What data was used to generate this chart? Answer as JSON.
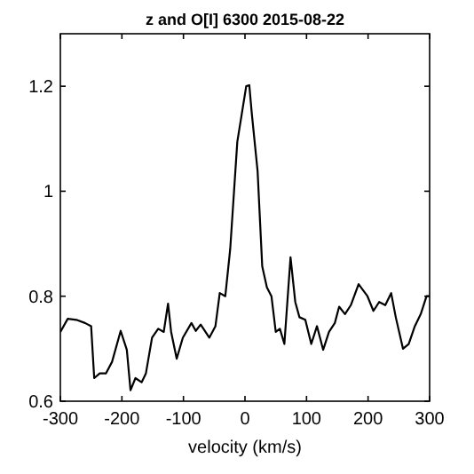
{
  "chart_data": {
    "type": "line",
    "title": "z and  O[I] 6300  2015-08-22",
    "xlabel": "velocity (km/s)",
    "x": [
      -300,
      -288,
      -274,
      -260,
      -250,
      -245,
      -236,
      -226,
      -216,
      -202,
      -192,
      -186,
      -178,
      -168,
      -161,
      -151,
      -141,
      -132,
      -125,
      -120,
      -111,
      -101,
      -87,
      -80,
      -72,
      -58,
      -48,
      -41,
      -32,
      -24,
      -12.5,
      2,
      7,
      11,
      20.5,
      28,
      35.6,
      43,
      50,
      56.7,
      64,
      74,
      81.7,
      88.5,
      98,
      107.7,
      117,
      127,
      136.5,
      146,
      153,
      162.5,
      172,
      184.6,
      199,
      208.7,
      218,
      228,
      237.5,
      245,
      256.7,
      266,
      276,
      285.6,
      295,
      300
    ],
    "series": [
      {
        "color": "#000000",
        "values": [
          0.732,
          0.757,
          0.755,
          0.749,
          0.743,
          0.644,
          0.653,
          0.653,
          0.675,
          0.734,
          0.698,
          0.621,
          0.644,
          0.636,
          0.653,
          0.721,
          0.738,
          0.732,
          0.786,
          0.732,
          0.681,
          0.721,
          0.749,
          0.734,
          0.746,
          0.721,
          0.743,
          0.806,
          0.8,
          0.89,
          1.094,
          1.2,
          1.202,
          1.149,
          1.038,
          0.857,
          0.817,
          0.8,
          0.732,
          0.738,
          0.709,
          0.874,
          0.789,
          0.76,
          0.755,
          0.709,
          0.743,
          0.698,
          0.732,
          0.749,
          0.78,
          0.766,
          0.783,
          0.823,
          0.8,
          0.772,
          0.789,
          0.783,
          0.806,
          0.76,
          0.7,
          0.709,
          0.743,
          0.766,
          0.8,
          0.8
        ]
      }
    ],
    "xlim": [
      -300,
      300
    ],
    "xticks": [
      -300,
      -200,
      -100,
      0,
      100,
      200,
      300
    ],
    "ylim": [
      0.6,
      1.3
    ],
    "yticks": [
      0.6,
      0.8,
      1,
      1.2
    ],
    "grid": false,
    "line_style": "solid"
  }
}
